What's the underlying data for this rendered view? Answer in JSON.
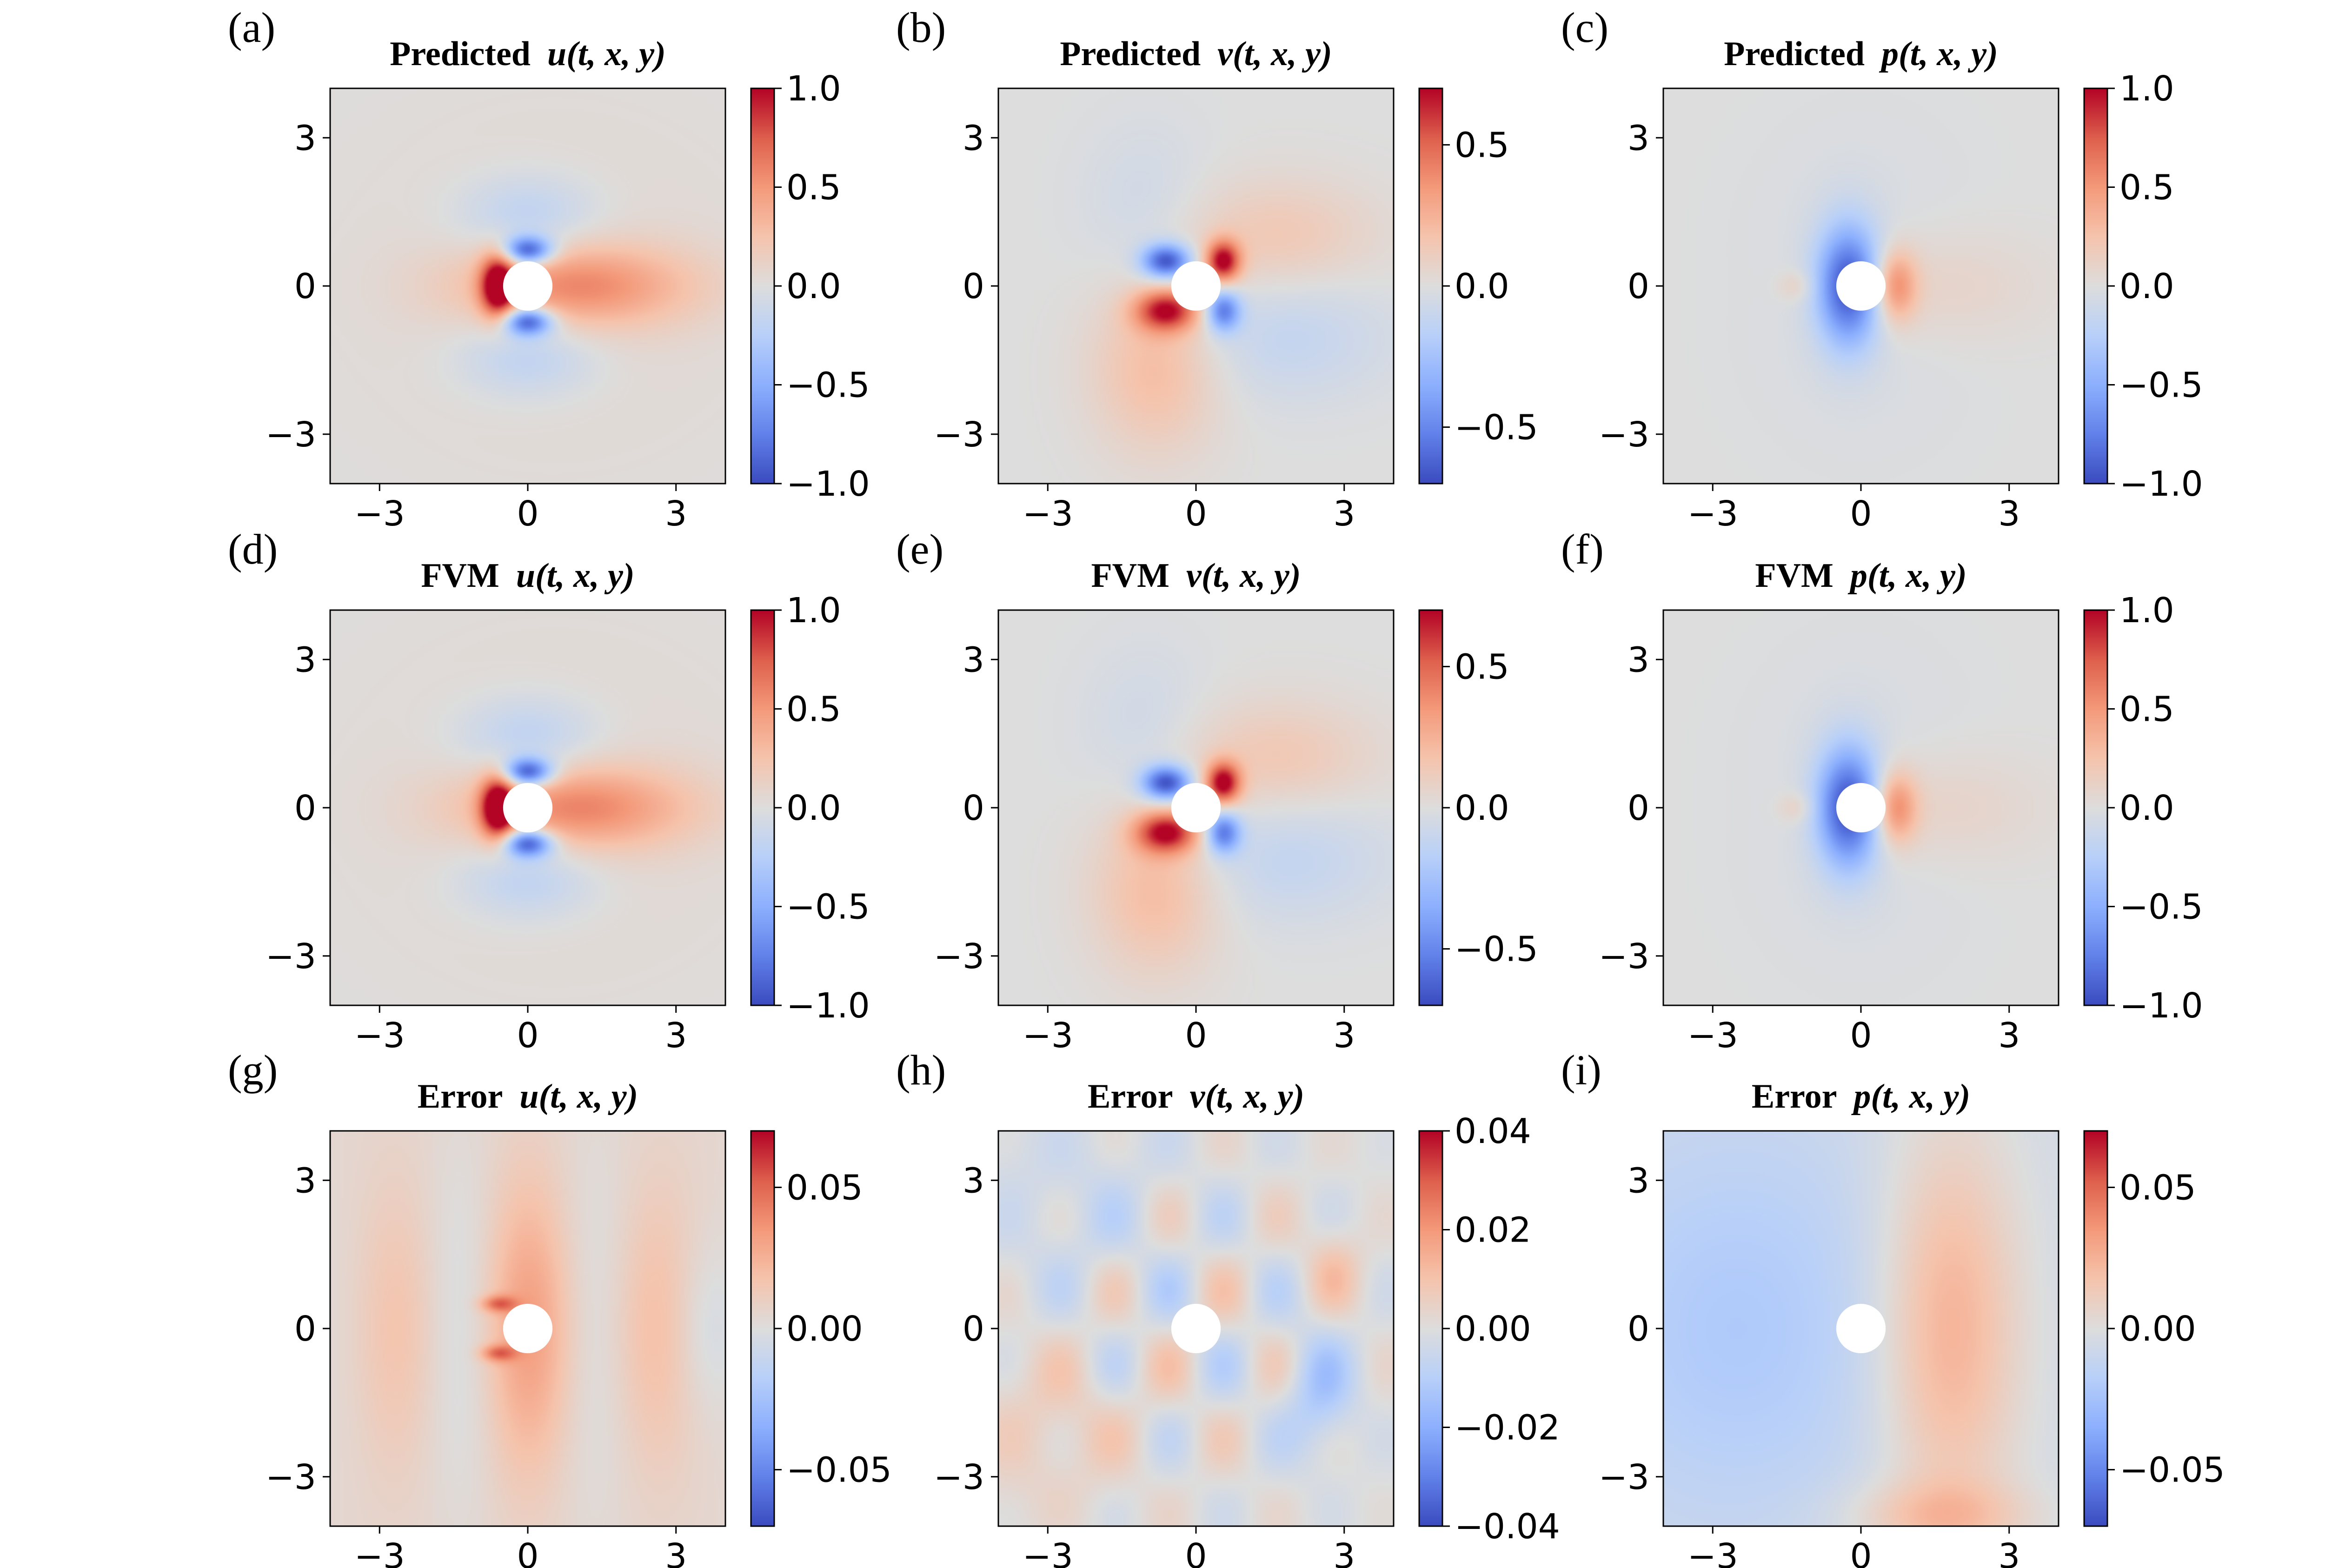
{
  "colors": {
    "cmap": "coolwarm",
    "background": "#ffffff"
  },
  "chart_data": [
    {
      "id": "a",
      "panel_label": "(a)",
      "type": "heatmap",
      "title_prefix": "Predicted",
      "title_var": "u(t, x, y)",
      "field": "u",
      "mode": "pred",
      "xlim": [
        -4,
        4
      ],
      "ylim": [
        -4,
        4
      ],
      "xticks": [
        -3,
        0,
        3
      ],
      "yticks": [
        -3,
        0,
        3
      ],
      "xtick_labels": [
        "−3",
        "0",
        "3"
      ],
      "ytick_labels": [
        "−3",
        "0",
        "3"
      ],
      "obstacle": {
        "shape": "circle",
        "center": [
          0,
          0
        ],
        "radius": 0.5
      },
      "clim": [
        -1.0,
        1.0
      ],
      "cbar_ticks": [
        -1.0,
        -0.5,
        0.0,
        0.5,
        1.0
      ],
      "cbar_labels": [
        "−1.0",
        "−0.5",
        "0.0",
        "0.5",
        "1.0"
      ]
    },
    {
      "id": "b",
      "panel_label": "(b)",
      "type": "heatmap",
      "title_prefix": "Predicted",
      "title_var": "v(t, x, y)",
      "field": "v",
      "mode": "pred",
      "xlim": [
        -4,
        4
      ],
      "ylim": [
        -4,
        4
      ],
      "xticks": [
        -3,
        0,
        3
      ],
      "yticks": [
        -3,
        0,
        3
      ],
      "xtick_labels": [
        "−3",
        "0",
        "3"
      ],
      "ytick_labels": [
        "−3",
        "0",
        "3"
      ],
      "obstacle": {
        "shape": "circle",
        "center": [
          0,
          0
        ],
        "radius": 0.5
      },
      "clim": [
        -0.7,
        0.7
      ],
      "cbar_ticks": [
        -0.5,
        0.0,
        0.5
      ],
      "cbar_labels": [
        "−0.5",
        "0.0",
        "0.5"
      ]
    },
    {
      "id": "c",
      "panel_label": "(c)",
      "type": "heatmap",
      "title_prefix": "Predicted",
      "title_var": "p(t, x, y)",
      "field": "p",
      "mode": "pred",
      "xlim": [
        -4,
        4
      ],
      "ylim": [
        -4,
        4
      ],
      "xticks": [
        -3,
        0,
        3
      ],
      "yticks": [
        -3,
        0,
        3
      ],
      "xtick_labels": [
        "−3",
        "0",
        "3"
      ],
      "ytick_labels": [
        "−3",
        "0",
        "3"
      ],
      "obstacle": {
        "shape": "circle",
        "center": [
          0,
          0
        ],
        "radius": 0.5
      },
      "clim": [
        -1.0,
        1.0
      ],
      "cbar_ticks": [
        -1.0,
        -0.5,
        0.0,
        0.5,
        1.0
      ],
      "cbar_labels": [
        "−1.0",
        "−0.5",
        "0.0",
        "0.5",
        "1.0"
      ]
    },
    {
      "id": "d",
      "panel_label": "(d)",
      "type": "heatmap",
      "title_prefix": "FVM",
      "title_var": "u(t, x, y)",
      "field": "u",
      "mode": "fvm",
      "xlim": [
        -4,
        4
      ],
      "ylim": [
        -4,
        4
      ],
      "xticks": [
        -3,
        0,
        3
      ],
      "yticks": [
        -3,
        0,
        3
      ],
      "xtick_labels": [
        "−3",
        "0",
        "3"
      ],
      "ytick_labels": [
        "−3",
        "0",
        "3"
      ],
      "obstacle": {
        "shape": "circle",
        "center": [
          0,
          0
        ],
        "radius": 0.5
      },
      "clim": [
        -1.0,
        1.0
      ],
      "cbar_ticks": [
        -1.0,
        -0.5,
        0.0,
        0.5,
        1.0
      ],
      "cbar_labels": [
        "−1.0",
        "−0.5",
        "0.0",
        "0.5",
        "1.0"
      ]
    },
    {
      "id": "e",
      "panel_label": "(e)",
      "type": "heatmap",
      "title_prefix": "FVM",
      "title_var": "v(t, x, y)",
      "field": "v",
      "mode": "fvm",
      "xlim": [
        -4,
        4
      ],
      "ylim": [
        -4,
        4
      ],
      "xticks": [
        -3,
        0,
        3
      ],
      "yticks": [
        -3,
        0,
        3
      ],
      "xtick_labels": [
        "−3",
        "0",
        "3"
      ],
      "ytick_labels": [
        "−3",
        "0",
        "3"
      ],
      "obstacle": {
        "shape": "circle",
        "center": [
          0,
          0
        ],
        "radius": 0.5
      },
      "clim": [
        -0.7,
        0.7
      ],
      "cbar_ticks": [
        -0.5,
        0.0,
        0.5
      ],
      "cbar_labels": [
        "−0.5",
        "0.0",
        "0.5"
      ]
    },
    {
      "id": "f",
      "panel_label": "(f)",
      "type": "heatmap",
      "title_prefix": "FVM",
      "title_var": "p(t, x, y)",
      "field": "p",
      "mode": "fvm",
      "xlim": [
        -4,
        4
      ],
      "ylim": [
        -4,
        4
      ],
      "xticks": [
        -3,
        0,
        3
      ],
      "yticks": [
        -3,
        0,
        3
      ],
      "xtick_labels": [
        "−3",
        "0",
        "3"
      ],
      "ytick_labels": [
        "−3",
        "0",
        "3"
      ],
      "obstacle": {
        "shape": "circle",
        "center": [
          0,
          0
        ],
        "radius": 0.5
      },
      "clim": [
        -1.0,
        1.0
      ],
      "cbar_ticks": [
        -1.0,
        -0.5,
        0.0,
        0.5,
        1.0
      ],
      "cbar_labels": [
        "−1.0",
        "−0.5",
        "0.0",
        "0.5",
        "1.0"
      ]
    },
    {
      "id": "g",
      "panel_label": "(g)",
      "type": "heatmap",
      "title_prefix": "Error",
      "title_var": "u(t, x, y)",
      "field": "u",
      "mode": "err",
      "xlim": [
        -4,
        4
      ],
      "ylim": [
        -4,
        4
      ],
      "xticks": [
        -3,
        0,
        3
      ],
      "yticks": [
        -3,
        0,
        3
      ],
      "xtick_labels": [
        "−3",
        "0",
        "3"
      ],
      "ytick_labels": [
        "−3",
        "0",
        "3"
      ],
      "obstacle": {
        "shape": "circle",
        "center": [
          0,
          0
        ],
        "radius": 0.5
      },
      "clim": [
        -0.07,
        0.07
      ],
      "cbar_ticks": [
        -0.05,
        0.0,
        0.05
      ],
      "cbar_labels": [
        "−0.05",
        "0.00",
        "0.05"
      ]
    },
    {
      "id": "h",
      "panel_label": "(h)",
      "type": "heatmap",
      "title_prefix": "Error",
      "title_var": "v(t, x, y)",
      "field": "v",
      "mode": "err",
      "xlim": [
        -4,
        4
      ],
      "ylim": [
        -4,
        4
      ],
      "xticks": [
        -3,
        0,
        3
      ],
      "yticks": [
        -3,
        0,
        3
      ],
      "xtick_labels": [
        "−3",
        "0",
        "3"
      ],
      "ytick_labels": [
        "−3",
        "0",
        "3"
      ],
      "obstacle": {
        "shape": "circle",
        "center": [
          0,
          0
        ],
        "radius": 0.5
      },
      "clim": [
        -0.04,
        0.04
      ],
      "cbar_ticks": [
        -0.04,
        -0.02,
        0.0,
        0.02,
        0.04
      ],
      "cbar_labels": [
        "−0.04",
        "−0.02",
        "0.00",
        "0.02",
        "0.04"
      ]
    },
    {
      "id": "i",
      "panel_label": "(i)",
      "type": "heatmap",
      "title_prefix": "Error",
      "title_var": "p(t, x, y)",
      "field": "p",
      "mode": "err",
      "xlim": [
        -4,
        4
      ],
      "ylim": [
        -4,
        4
      ],
      "xticks": [
        -3,
        0,
        3
      ],
      "yticks": [
        -3,
        0,
        3
      ],
      "xtick_labels": [
        "−3",
        "0",
        "3"
      ],
      "ytick_labels": [
        "−3",
        "0",
        "3"
      ],
      "obstacle": {
        "shape": "circle",
        "center": [
          0,
          0
        ],
        "radius": 0.5
      },
      "clim": [
        -0.07,
        0.07
      ],
      "cbar_ticks": [
        -0.05,
        0.0,
        0.05
      ],
      "cbar_labels": [
        "−0.05",
        "0.00",
        "0.05"
      ]
    }
  ]
}
